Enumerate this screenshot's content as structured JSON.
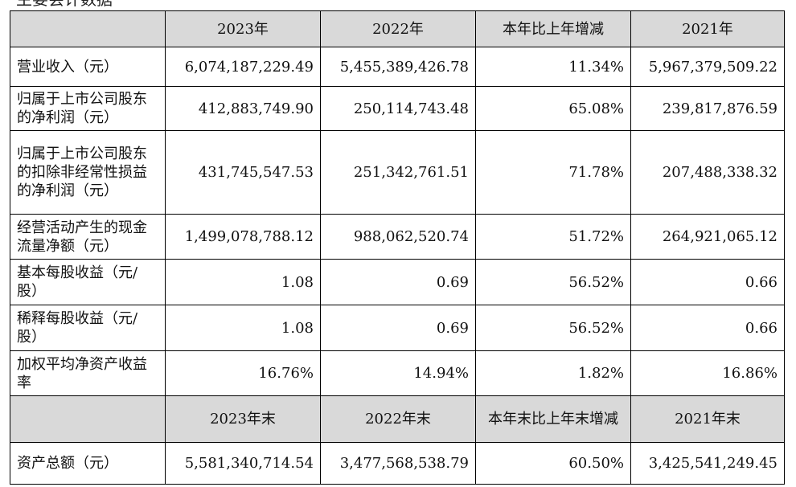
{
  "cut_caption": "主要会计数据",
  "table": {
    "headers": [
      "",
      "2023年",
      "2022年",
      "本年比上年增减",
      "2021年"
    ],
    "rows": [
      {
        "label": "营业收入（元）",
        "values": [
          "6,074,187,229.49",
          "5,455,389,426.78",
          "11.34%",
          "5,967,379,509.22"
        ]
      },
      {
        "label": "归属于上市公司股东的净利润（元）",
        "values": [
          "412,883,749.90",
          "250,114,743.48",
          "65.08%",
          "239,817,876.59"
        ]
      },
      {
        "label": "归属于上市公司股东的扣除非经常性损益的净利润（元）",
        "values": [
          "431,745,547.53",
          "251,342,761.51",
          "71.78%",
          "207,488,338.32"
        ]
      },
      {
        "label": "经营活动产生的现金流量净额（元）",
        "values": [
          "1,499,078,788.12",
          "988,062,520.74",
          "51.72%",
          "264,921,065.12"
        ]
      },
      {
        "label": "基本每股收益（元/股）",
        "values": [
          "1.08",
          "0.69",
          "56.52%",
          "0.66"
        ]
      },
      {
        "label": "稀释每股收益（元/股）",
        "values": [
          "1.08",
          "0.69",
          "56.52%",
          "0.66"
        ]
      },
      {
        "label": "加权平均净资产收益率",
        "values": [
          "16.76%",
          "14.94%",
          "1.82%",
          "16.86%"
        ]
      }
    ],
    "headers2": [
      "",
      "2023年末",
      "2022年末",
      "本年末比上年末增减",
      "2021年末"
    ],
    "rows2": [
      {
        "label": "资产总额（元）",
        "values": [
          "5,581,340,714.54",
          "3,477,568,538.79",
          "60.50%",
          "3,425,541,249.45"
        ]
      }
    ]
  }
}
